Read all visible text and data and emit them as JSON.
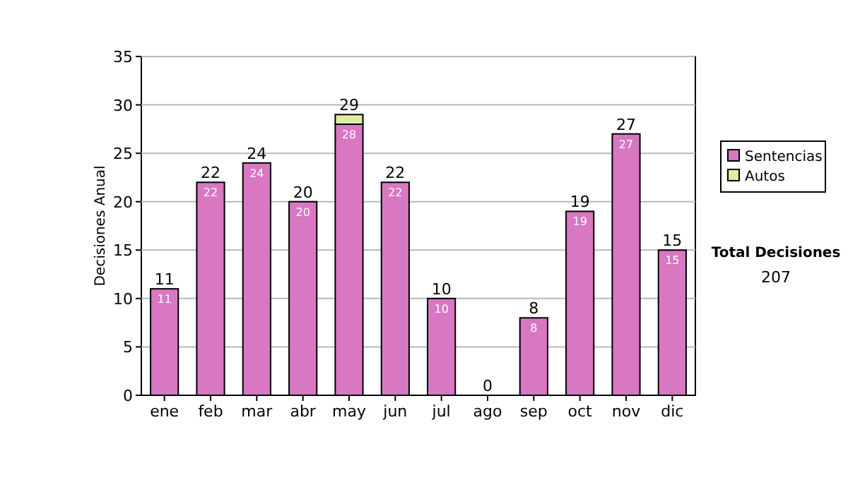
{
  "chart_data": {
    "type": "bar",
    "stacked": true,
    "ylabel": "Decisiones Anual",
    "categories": [
      "ene",
      "feb",
      "mar",
      "abr",
      "may",
      "jun",
      "jul",
      "ago",
      "sep",
      "oct",
      "nov",
      "dic"
    ],
    "series": [
      {
        "name": "Sentencias",
        "color": "#d877c2",
        "values": [
          11,
          22,
          24,
          20,
          28,
          22,
          10,
          0,
          8,
          19,
          27,
          15
        ],
        "value_labels": [
          "11",
          "22",
          "24",
          "20",
          "28",
          "22",
          "10",
          null,
          "8",
          "19",
          "27",
          "15"
        ]
      },
      {
        "name": "Autos",
        "color": "#dfeca0",
        "values": [
          0,
          0,
          0,
          0,
          1,
          0,
          0,
          0,
          0,
          0,
          0,
          0
        ]
      }
    ],
    "totals": [
      "11",
      "22",
      "24",
      "20",
      "29",
      "22",
      "10",
      "0",
      "8",
      "19",
      "27",
      "15"
    ],
    "ylim": [
      0,
      35
    ],
    "yticks": [
      0,
      5,
      10,
      15,
      20,
      25,
      30,
      35
    ],
    "grid": "y",
    "legend": "right",
    "annotations": [
      "Total Decisiones",
      "207"
    ]
  }
}
